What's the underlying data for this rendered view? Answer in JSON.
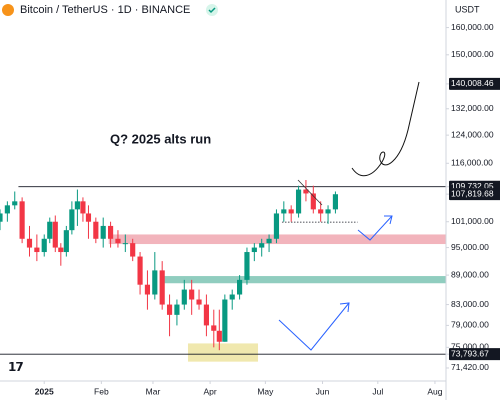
{
  "chart_data": {
    "type": "candlestick",
    "title": "Bitcoin / TetherUS · 1D · BINANCE",
    "currency": "USDT",
    "annotation": "Q? 2025 alts run",
    "log_scale": true,
    "grid": false,
    "up_color": "#089981",
    "down_color": "#f23645",
    "xlim": [
      -24,
      218
    ],
    "ylim": [
      69250,
      170800
    ],
    "xticks": [
      {
        "value": 0,
        "label": "2025"
      },
      {
        "value": 31,
        "label": "Feb"
      },
      {
        "value": 59,
        "label": "Mar"
      },
      {
        "value": 90,
        "label": "Apr"
      },
      {
        "value": 120,
        "label": "May"
      },
      {
        "value": 151,
        "label": "Jun"
      },
      {
        "value": 181,
        "label": "Jul"
      },
      {
        "value": 212,
        "label": "Aug"
      }
    ],
    "yticks": [
      {
        "value": 160000,
        "label": "160,000.00"
      },
      {
        "value": 150000,
        "label": "150,000.00"
      },
      {
        "value": 140008.46,
        "label": "140,008.46"
      },
      {
        "value": 132000,
        "label": "132,000.00"
      },
      {
        "value": 124000,
        "label": "124,000.00"
      },
      {
        "value": 116000,
        "label": "116,000.00"
      },
      {
        "value": 109732.05,
        "label": "109,732.05"
      },
      {
        "value": 107819.68,
        "label": "107,819.68"
      },
      {
        "value": 101000,
        "label": "101,000.00"
      },
      {
        "value": 95000,
        "label": "95,000.00"
      },
      {
        "value": 89000,
        "label": "89,000.00"
      },
      {
        "value": 83000,
        "label": "83,000.00"
      },
      {
        "value": 79000,
        "label": "79,000.00"
      },
      {
        "value": 75000,
        "label": "75,000.00"
      },
      {
        "value": 73793.67,
        "label": "73,793.67"
      },
      {
        "value": 71420,
        "label": "71,420.00"
      }
    ],
    "highlighted_ticks": [
      140008.46,
      109732.05,
      107819.68,
      73793.67
    ],
    "zones": [
      {
        "from": 95800,
        "to": 98000,
        "start": 35,
        "color": "#f0a7b0"
      },
      {
        "from": 87300,
        "to": 88800,
        "start": 65,
        "color": "#7cc4b4"
      },
      {
        "from": 72500,
        "to": 75700,
        "start": 78,
        "end": 116,
        "color": "#ede4a0"
      }
    ],
    "lines": [
      {
        "value": 109732.05,
        "start": -14,
        "style": "solid"
      },
      {
        "value": 73793.67,
        "start": -24,
        "style": "solid"
      },
      {
        "value": 100900,
        "start": 129,
        "end": 170,
        "style": "dotted"
      }
    ],
    "x": [
      -24,
      -20,
      -16,
      -12,
      -8,
      -4,
      0,
      3,
      6,
      9,
      12,
      15,
      18,
      21,
      24,
      28,
      32,
      36,
      40,
      44,
      48,
      52,
      56,
      60,
      64,
      68,
      72,
      76,
      80,
      84,
      88,
      92,
      95,
      98,
      102,
      106,
      110,
      114,
      118,
      122,
      126,
      130,
      134,
      138,
      142,
      146,
      150,
      154,
      158
    ],
    "open": [
      101000,
      103000,
      105000,
      106000,
      97000,
      95000,
      94000,
      97000,
      101000,
      95000,
      94000,
      99000,
      104000,
      106000,
      103000,
      101000,
      97000,
      100000,
      97000,
      96000,
      96000,
      93000,
      87000,
      85000,
      90000,
      83000,
      81000,
      83000,
      86000,
      84000,
      83000,
      79000,
      78000,
      76000,
      84000,
      85000,
      88000,
      94000,
      95000,
      96000,
      97000,
      103000,
      104000,
      103000,
      109000,
      108000,
      104000,
      103000,
      104000
    ],
    "high": [
      104000,
      106000,
      108500,
      107000,
      100000,
      98000,
      98000,
      102000,
      102500,
      96000,
      100000,
      106000,
      109000,
      107000,
      105000,
      102000,
      102000,
      101000,
      99000,
      98000,
      97000,
      94000,
      90000,
      94000,
      92000,
      85000,
      84000,
      88000,
      88000,
      86000,
      85000,
      82000,
      82000,
      85000,
      86000,
      89000,
      95000,
      96000,
      97000,
      98000,
      104000,
      106000,
      105000,
      110000,
      111500,
      110000,
      106000,
      105000,
      108500
    ],
    "low": [
      99000,
      101000,
      104000,
      96000,
      93000,
      92000,
      93000,
      96000,
      94000,
      91000,
      93000,
      98000,
      100000,
      101000,
      97000,
      96000,
      95000,
      95000,
      95000,
      94000,
      92000,
      85000,
      82000,
      84000,
      82000,
      77000,
      79000,
      82000,
      81000,
      82000,
      77000,
      75000,
      74500,
      76000,
      82000,
      84000,
      87000,
      92000,
      93000,
      94000,
      96000,
      101000,
      101000,
      102000,
      106000,
      103000,
      101000,
      100500,
      103000
    ],
    "close": [
      103000,
      105000,
      106000,
      97000,
      95000,
      94000,
      97000,
      101000,
      95000,
      94000,
      99000,
      104000,
      106000,
      103000,
      101000,
      97000,
      100000,
      97000,
      96000,
      96000,
      93000,
      87000,
      85000,
      90000,
      83000,
      81000,
      83000,
      86000,
      84000,
      83000,
      79000,
      78000,
      76000,
      84000,
      85000,
      88000,
      94000,
      95000,
      96000,
      97000,
      103000,
      104000,
      103000,
      109000,
      108000,
      104000,
      103000,
      104000,
      107800
    ]
  }
}
